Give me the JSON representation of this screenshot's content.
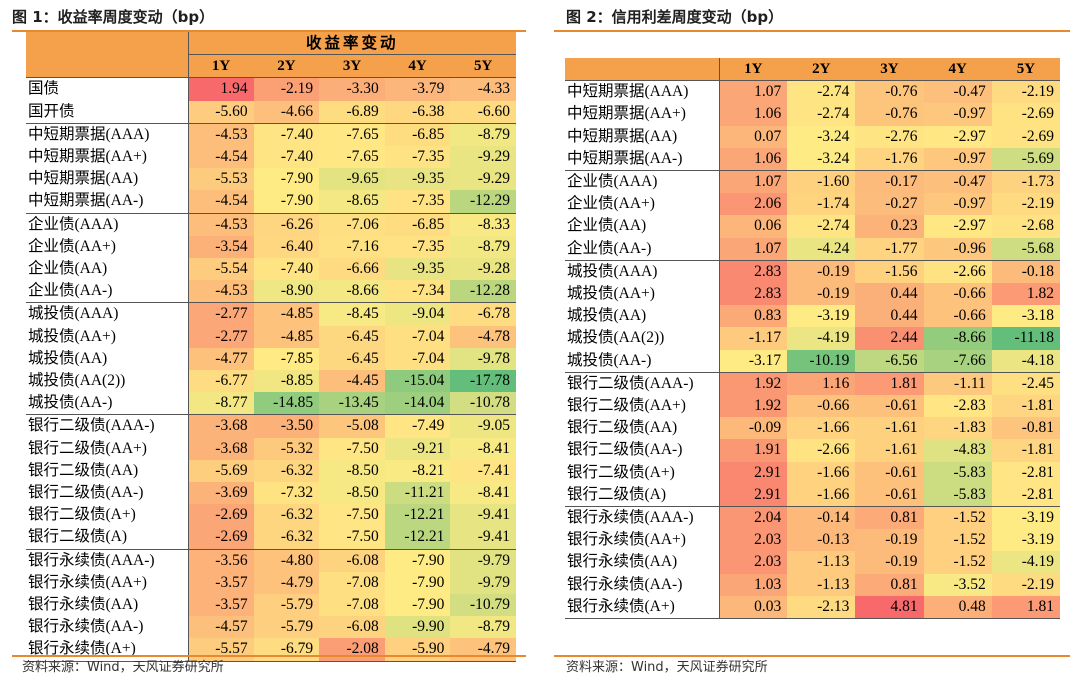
{
  "figure1": {
    "title": "图 1：收益率周度变动（bp）",
    "group_header": "收益率变动",
    "source": "资料来源：Wind，天风证券研究所"
  },
  "figure2": {
    "title": "图 2：信用利差周度变动（bp）",
    "source": "资料来源：Wind，天风证券研究所"
  },
  "colors": {
    "header": "#f5a04a",
    "rule": "#e8892f",
    "high": "#f8696b",
    "mid": "#ffeb84",
    "low": "#63be7b"
  },
  "chart_data": [
    {
      "type": "table",
      "title": "图 1：收益率周度变动（bp）",
      "columns": [
        "1Y",
        "2Y",
        "3Y",
        "4Y",
        "5Y"
      ],
      "color_range": [
        -17.78,
        1.94
      ],
      "groups": [
        {
          "rows": [
            {
              "label": "国债",
              "values": [
                "1.94",
                "-2.19",
                "-3.30",
                "-3.79",
                "-4.33"
              ]
            },
            {
              "label": "国开债",
              "values": [
                "-5.60",
                "-4.66",
                "-6.89",
                "-6.38",
                "-6.60"
              ]
            }
          ]
        },
        {
          "rows": [
            {
              "label": "中短期票据(AAA)",
              "values": [
                "-4.53",
                "-7.40",
                "-7.65",
                "-6.85",
                "-8.79"
              ]
            },
            {
              "label": "中短期票据(AA+)",
              "values": [
                "-4.54",
                "-7.40",
                "-7.65",
                "-7.35",
                "-9.29"
              ]
            },
            {
              "label": "中短期票据(AA)",
              "values": [
                "-5.53",
                "-7.90",
                "-9.65",
                "-9.35",
                "-9.29"
              ]
            },
            {
              "label": "中短期票据(AA-)",
              "values": [
                "-4.54",
                "-7.90",
                "-8.65",
                "-7.35",
                "-12.29"
              ]
            }
          ]
        },
        {
          "rows": [
            {
              "label": "企业债(AAA)",
              "values": [
                "-4.53",
                "-6.26",
                "-7.06",
                "-6.85",
                "-8.33"
              ]
            },
            {
              "label": "企业债(AA+)",
              "values": [
                "-3.54",
                "-6.40",
                "-7.16",
                "-7.35",
                "-8.79"
              ]
            },
            {
              "label": "企业债(AA)",
              "values": [
                "-5.54",
                "-7.40",
                "-6.66",
                "-9.35",
                "-9.28"
              ]
            },
            {
              "label": "企业债(AA-)",
              "values": [
                "-4.53",
                "-8.90",
                "-8.66",
                "-7.34",
                "-12.28"
              ]
            }
          ]
        },
        {
          "rows": [
            {
              "label": "城投债(AAA)",
              "values": [
                "-2.77",
                "-4.85",
                "-8.45",
                "-9.04",
                "-6.78"
              ]
            },
            {
              "label": "城投债(AA+)",
              "values": [
                "-2.77",
                "-4.85",
                "-6.45",
                "-7.04",
                "-4.78"
              ]
            },
            {
              "label": "城投债(AA)",
              "values": [
                "-4.77",
                "-7.85",
                "-6.45",
                "-7.04",
                "-9.78"
              ]
            },
            {
              "label": "城投债(AA(2))",
              "values": [
                "-6.77",
                "-8.85",
                "-4.45",
                "-15.04",
                "-17.78"
              ]
            },
            {
              "label": "城投债(AA-)",
              "values": [
                "-8.77",
                "-14.85",
                "-13.45",
                "-14.04",
                "-10.78"
              ]
            }
          ]
        },
        {
          "rows": [
            {
              "label": "银行二级债(AAA-)",
              "values": [
                "-3.68",
                "-3.50",
                "-5.08",
                "-7.49",
                "-9.05"
              ]
            },
            {
              "label": "银行二级债(AA+)",
              "values": [
                "-3.68",
                "-5.32",
                "-7.50",
                "-9.21",
                "-8.41"
              ]
            },
            {
              "label": "银行二级债(AA)",
              "values": [
                "-5.69",
                "-6.32",
                "-8.50",
                "-8.21",
                "-7.41"
              ]
            },
            {
              "label": "银行二级债(AA-)",
              "values": [
                "-3.69",
                "-7.32",
                "-8.50",
                "-11.21",
                "-8.41"
              ]
            },
            {
              "label": "银行二级债(A+)",
              "values": [
                "-2.69",
                "-6.32",
                "-7.50",
                "-12.21",
                "-9.41"
              ]
            },
            {
              "label": "银行二级债(A)",
              "values": [
                "-2.69",
                "-6.32",
                "-7.50",
                "-12.21",
                "-9.41"
              ]
            }
          ]
        },
        {
          "rows": [
            {
              "label": "银行永续债(AAA-)",
              "values": [
                "-3.56",
                "-4.80",
                "-6.08",
                "-7.90",
                "-9.79"
              ]
            },
            {
              "label": "银行永续债(AA+)",
              "values": [
                "-3.57",
                "-4.79",
                "-7.08",
                "-7.90",
                "-9.79"
              ]
            },
            {
              "label": "银行永续债(AA)",
              "values": [
                "-3.57",
                "-5.79",
                "-7.08",
                "-7.90",
                "-10.79"
              ]
            },
            {
              "label": "银行永续债(AA-)",
              "values": [
                "-4.57",
                "-5.79",
                "-6.08",
                "-9.90",
                "-8.79"
              ]
            },
            {
              "label": "银行永续债(A+)",
              "values": [
                "-5.57",
                "-6.79",
                "-2.08",
                "-5.90",
                "-4.79"
              ]
            }
          ]
        }
      ]
    },
    {
      "type": "table",
      "title": "图 2：信用利差周度变动（bp）",
      "columns": [
        "1Y",
        "2Y",
        "3Y",
        "4Y",
        "5Y"
      ],
      "color_range": [
        -11.18,
        4.81
      ],
      "groups": [
        {
          "rows": [
            {
              "label": "中短期票据(AAA)",
              "values": [
                "1.07",
                "-2.74",
                "-0.76",
                "-0.47",
                "-2.19"
              ]
            },
            {
              "label": "中短期票据(AA+)",
              "values": [
                "1.06",
                "-2.74",
                "-0.76",
                "-0.97",
                "-2.69"
              ]
            },
            {
              "label": "中短期票据(AA)",
              "values": [
                "0.07",
                "-3.24",
                "-2.76",
                "-2.97",
                "-2.69"
              ]
            },
            {
              "label": "中短期票据(AA-)",
              "values": [
                "1.06",
                "-3.24",
                "-1.76",
                "-0.97",
                "-5.69"
              ]
            }
          ]
        },
        {
          "rows": [
            {
              "label": "企业债(AAA)",
              "values": [
                "1.07",
                "-1.60",
                "-0.17",
                "-0.47",
                "-1.73"
              ]
            },
            {
              "label": "企业债(AA+)",
              "values": [
                "2.06",
                "-1.74",
                "-0.27",
                "-0.97",
                "-2.19"
              ]
            },
            {
              "label": "企业债(AA)",
              "values": [
                "0.06",
                "-2.74",
                "0.23",
                "-2.97",
                "-2.68"
              ]
            },
            {
              "label": "企业债(AA-)",
              "values": [
                "1.07",
                "-4.24",
                "-1.77",
                "-0.96",
                "-5.68"
              ]
            }
          ]
        },
        {
          "rows": [
            {
              "label": "城投债(AAA)",
              "values": [
                "2.83",
                "-0.19",
                "-1.56",
                "-2.66",
                "-0.18"
              ]
            },
            {
              "label": "城投债(AA+)",
              "values": [
                "2.83",
                "-0.19",
                "0.44",
                "-0.66",
                "1.82"
              ]
            },
            {
              "label": "城投债(AA)",
              "values": [
                "0.83",
                "-3.19",
                "0.44",
                "-0.66",
                "-3.18"
              ]
            },
            {
              "label": "城投债(AA(2))",
              "values": [
                "-1.17",
                "-4.19",
                "2.44",
                "-8.66",
                "-11.18"
              ]
            },
            {
              "label": "城投债(AA-)",
              "values": [
                "-3.17",
                "-10.19",
                "-6.56",
                "-7.66",
                "-4.18"
              ]
            }
          ]
        },
        {
          "rows": [
            {
              "label": "银行二级债(AAA-)",
              "values": [
                "1.92",
                "1.16",
                "1.81",
                "-1.11",
                "-2.45"
              ]
            },
            {
              "label": "银行二级债(AA+)",
              "values": [
                "1.92",
                "-0.66",
                "-0.61",
                "-2.83",
                "-1.81"
              ]
            },
            {
              "label": "银行二级债(AA)",
              "values": [
                "-0.09",
                "-1.66",
                "-1.61",
                "-1.83",
                "-0.81"
              ]
            },
            {
              "label": "银行二级债(AA-)",
              "values": [
                "1.91",
                "-2.66",
                "-1.61",
                "-4.83",
                "-1.81"
              ]
            },
            {
              "label": "银行二级债(A+)",
              "values": [
                "2.91",
                "-1.66",
                "-0.61",
                "-5.83",
                "-2.81"
              ]
            },
            {
              "label": "银行二级债(A)",
              "values": [
                "2.91",
                "-1.66",
                "-0.61",
                "-5.83",
                "-2.81"
              ]
            }
          ]
        },
        {
          "rows": [
            {
              "label": "银行永续债(AAA-)",
              "values": [
                "2.04",
                "-0.14",
                "0.81",
                "-1.52",
                "-3.19"
              ]
            },
            {
              "label": "银行永续债(AA+)",
              "values": [
                "2.03",
                "-0.13",
                "-0.19",
                "-1.52",
                "-3.19"
              ]
            },
            {
              "label": "银行永续债(AA)",
              "values": [
                "2.03",
                "-1.13",
                "-0.19",
                "-1.52",
                "-4.19"
              ]
            },
            {
              "label": "银行永续债(AA-)",
              "values": [
                "1.03",
                "-1.13",
                "0.81",
                "-3.52",
                "-2.19"
              ]
            },
            {
              "label": "银行永续债(A+)",
              "values": [
                "0.03",
                "-2.13",
                "4.81",
                "0.48",
                "1.81"
              ]
            }
          ]
        }
      ]
    }
  ]
}
